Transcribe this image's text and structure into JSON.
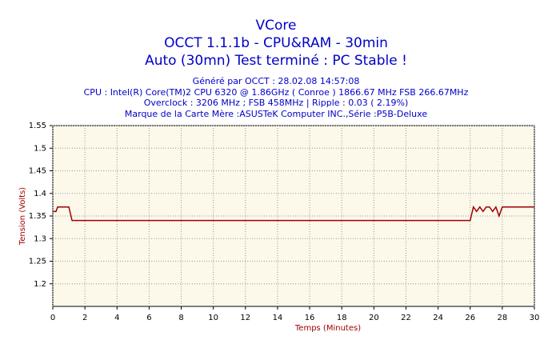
{
  "chart_data": {
    "type": "line",
    "title": "VCore",
    "subtitle": [
      "OCCT 1.1.1b - CPU&RAM - 30min",
      "Auto (30mn) Test terminé : PC Stable !"
    ],
    "info": [
      "Généré par OCCT : 28.02.08 14:57:08",
      "CPU : Intel(R) Core(TM)2 CPU 6320 @ 1.86GHz ( Conroe ) 1866.67 MHz FSB 266.67MHz",
      "Overclock : 3206 MHz ; FSB 458MHz | Ripple : 0.03 ( 2.19%)",
      "Marque de la Carte Mère :ASUSTeK Computer INC.,Série :P5B-Deluxe"
    ],
    "xlabel": "Temps (Minutes)",
    "ylabel": "Tension (Volts)",
    "x": [
      0,
      0.2,
      0.3,
      1.0,
      1.2,
      26,
      26.2,
      26.4,
      26.6,
      26.8,
      27,
      27.2,
      27.4,
      27.6,
      27.8,
      28,
      30
    ],
    "series": [
      {
        "color": "#a00000",
        "values": [
          1.36,
          1.36,
          1.37,
          1.37,
          1.34,
          1.34,
          1.37,
          1.36,
          1.37,
          1.36,
          1.37,
          1.37,
          1.36,
          1.37,
          1.35,
          1.37,
          1.37
        ]
      }
    ],
    "xlim": [
      0,
      30
    ],
    "xticks": [
      0,
      2,
      4,
      6,
      8,
      10,
      12,
      14,
      16,
      18,
      20,
      22,
      24,
      26,
      28,
      30
    ],
    "ylim": [
      1.15,
      1.55
    ],
    "yticks": [
      1.2,
      1.25,
      1.3,
      1.35,
      1.4,
      1.45,
      1.5,
      1.55
    ],
    "grid": true
  }
}
